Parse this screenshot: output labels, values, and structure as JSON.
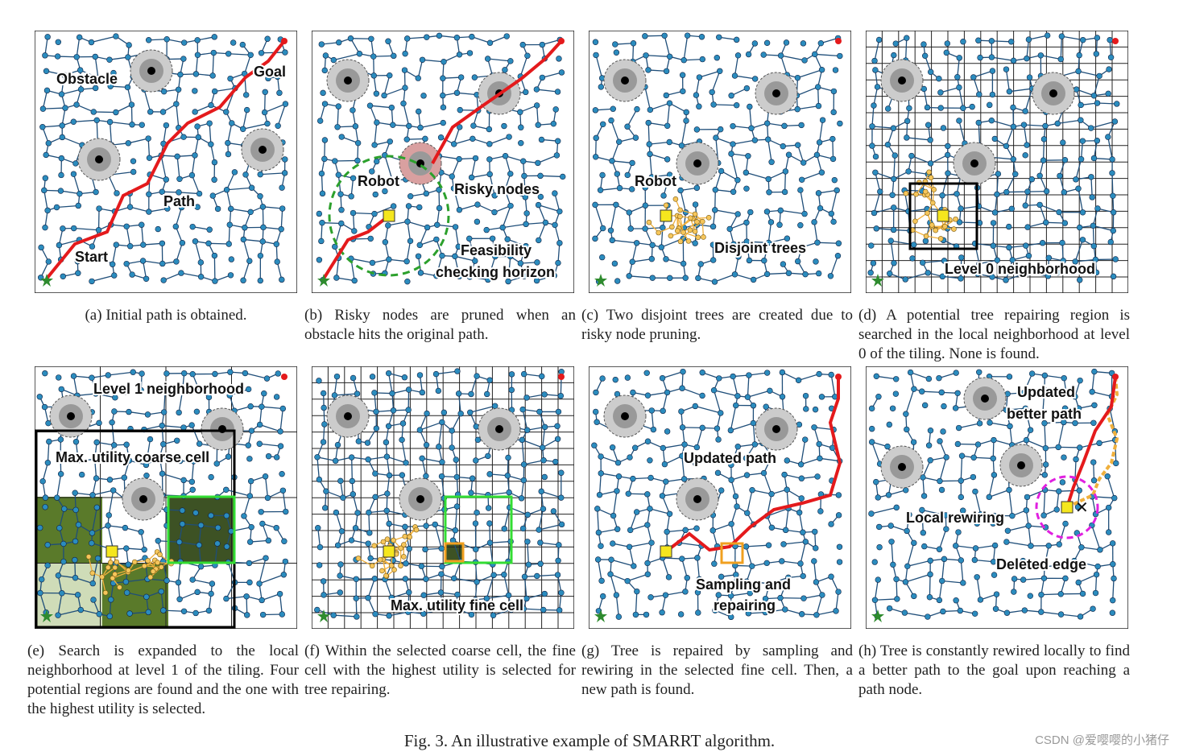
{
  "panels": [
    {
      "id": "a",
      "labels": [
        "Obstacle",
        "Goal",
        "Path",
        "Start"
      ],
      "caption": "(a) Initial path is obtained."
    },
    {
      "id": "b",
      "labels": [
        "Robot",
        "Risky nodes",
        "Feasibility",
        "checking horizon"
      ],
      "caption": "(b) Risky nodes are pruned when an obstacle hits the original path."
    },
    {
      "id": "c",
      "labels": [
        "Robot",
        "Disjoint trees"
      ],
      "caption": "(c) Two disjoint trees are created due to risky node pruning."
    },
    {
      "id": "d",
      "labels": [
        "Level 0 neighborhood"
      ],
      "caption": "(d) A potential tree repairing region is searched in the local neighborhood at level 0 of the tiling. None is found."
    },
    {
      "id": "e",
      "labels": [
        "Level 1 neighborhood",
        "Max. utility coarse cell"
      ],
      "caption": "(e) Search is expanded to the local neighborhood at level 1 of the tiling. Four potential regions are found and the one with the highest utility is selected."
    },
    {
      "id": "f",
      "labels": [
        "Max. utility fine cell"
      ],
      "caption": "(f) Within the selected coarse cell, the fine cell with the highest utility is selected for tree repairing."
    },
    {
      "id": "g",
      "labels": [
        "Updated path",
        "Sampling and",
        "repairing"
      ],
      "caption": "(g) Tree is repaired by sampling and rewiring in the selected fine cell. Then, a new path is found."
    },
    {
      "id": "h",
      "labels": [
        "Updated",
        "better path",
        "Local rewiring",
        "Deleted edge"
      ],
      "caption": "(h) Tree is constantly rewired locally to find a better path to the goal upon reaching a path node."
    }
  ],
  "figure_caption": "Fig. 3. An illustrative example of SMARRT algorithm.",
  "watermark": "CSDN @爱嘤嘤的小猪仔",
  "colors": {
    "node": "#2b8cbe",
    "edge": "#1f4e79",
    "path": "#e41a1c",
    "subtree": "#f0b03c",
    "robot": "#f5e61e",
    "horizon": "#2ca02c",
    "selected_cell": "#33dd33",
    "coarse_region": "#5a7a2a",
    "rewire_circle": "#e020e0",
    "start": "#2e8b2e",
    "goal": "#e41a1c"
  }
}
